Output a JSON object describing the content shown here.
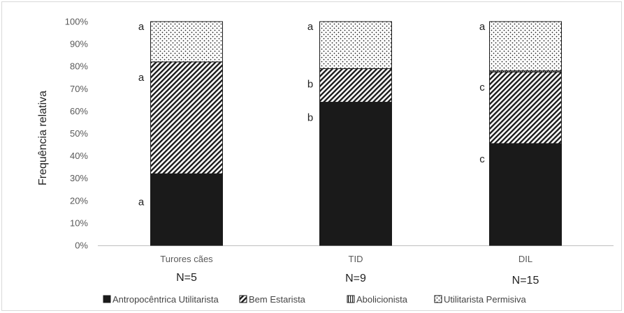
{
  "chart_data": {
    "type": "bar",
    "stacked": true,
    "ylabel": "Frequência relativa",
    "ylim": [
      0,
      100
    ],
    "yticks": [
      "0%",
      "10%",
      "20%",
      "30%",
      "40%",
      "50%",
      "60%",
      "70%",
      "80%",
      "90%",
      "100%"
    ],
    "categories": [
      "Turores cães",
      "TID",
      "DIL"
    ],
    "sample_sizes": [
      "N=5",
      "N=9",
      "N=15"
    ],
    "series": [
      {
        "name": "Antropocêntrica Utilitarista",
        "values": [
          32,
          64,
          45.5
        ],
        "letters": [
          "a",
          "b",
          "c"
        ],
        "pattern": "solid"
      },
      {
        "name": "Bem Estarista",
        "values": [
          50,
          15,
          32
        ],
        "letters": [
          "a",
          "b",
          "c"
        ],
        "pattern": "diagonal"
      },
      {
        "name": "Abolicionista",
        "values": [
          0,
          0,
          0.5
        ],
        "letters": [
          "",
          "",
          ""
        ],
        "pattern": "vertical"
      },
      {
        "name": "Utilitarista Permisiva",
        "values": [
          18,
          21,
          22
        ],
        "letters": [
          "a",
          "a",
          "a"
        ],
        "pattern": "dots"
      }
    ],
    "grid": false,
    "legend": "bottom"
  }
}
